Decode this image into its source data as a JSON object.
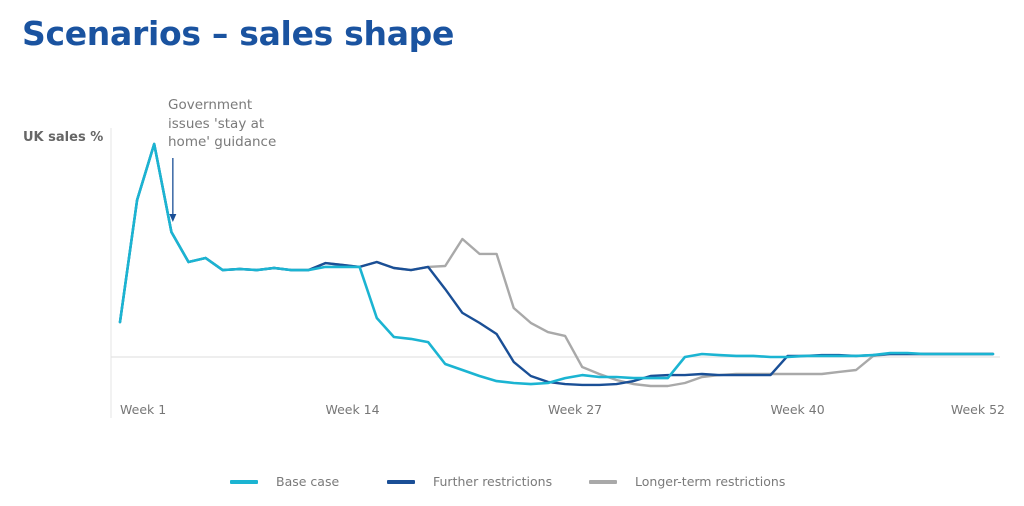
{
  "title": "Scenarios – sales shape",
  "chart_data": {
    "type": "line",
    "title": "Scenarios – sales shape",
    "ylabel": "UK sales %",
    "xlabel": "",
    "x": [
      1,
      2,
      3,
      4,
      5,
      6,
      7,
      8,
      9,
      10,
      11,
      12,
      13,
      14,
      15,
      16,
      17,
      18,
      19,
      20,
      21,
      22,
      23,
      24,
      25,
      26,
      27,
      28,
      29,
      30,
      31,
      32,
      33,
      34,
      35,
      36,
      37,
      38,
      39,
      40,
      41,
      42,
      43,
      44,
      45,
      46,
      47,
      48,
      49,
      50,
      51,
      52
    ],
    "x_ticks": [
      {
        "week": 1,
        "label": "Week 1"
      },
      {
        "week": 14,
        "label": "Week 14"
      },
      {
        "week": 27,
        "label": "Week 27"
      },
      {
        "week": 40,
        "label": "Week 40"
      },
      {
        "week": 52,
        "label": "Week 52"
      }
    ],
    "xlim": [
      1,
      52
    ],
    "ylim": [
      -25,
      100
    ],
    "y_units": "index (peak = 100, baseline = 0; axis unlabeled)",
    "zero_line": true,
    "grid": false,
    "legend_position": "bottom",
    "annotations": [
      {
        "text_lines": [
          "Government",
          "issues 'stay at",
          "home' guidance"
        ],
        "arrow_to_week": 4
      }
    ],
    "series": [
      {
        "name": "Base case",
        "color": "#1bb4d2",
        "values": [
          16.4,
          73.7,
          100,
          58.7,
          44.6,
          46.5,
          40.8,
          41.3,
          40.8,
          41.8,
          40.8,
          40.8,
          42.3,
          42.3,
          42.3,
          18.3,
          9.4,
          8.5,
          7.0,
          -3.3,
          -6.1,
          -8.9,
          -11.3,
          -12.2,
          -12.7,
          -12.2,
          -9.9,
          -8.5,
          -9.4,
          -9.4,
          -9.9,
          -9.9,
          -9.9,
          0,
          1.4,
          0.9,
          0.5,
          0.5,
          0,
          0,
          0.5,
          0.5,
          0.5,
          0.5,
          0.9,
          1.9,
          1.9,
          1.4,
          1.4,
          1.4,
          1.4,
          1.4
        ]
      },
      {
        "name": "Further restrictions",
        "color": "#1a4f96",
        "values": [
          16.4,
          73.7,
          100,
          58.7,
          44.6,
          46.5,
          40.8,
          41.3,
          40.8,
          41.8,
          40.8,
          40.8,
          44.1,
          43.2,
          42.3,
          44.6,
          41.8,
          40.8,
          42.3,
          31.9,
          20.7,
          16.0,
          10.8,
          -2.3,
          -8.9,
          -11.7,
          -12.7,
          -13.1,
          -13.1,
          -12.7,
          -11.3,
          -8.9,
          -8.5,
          -8.5,
          -8.0,
          -8.5,
          -8.5,
          -8.5,
          -8.5,
          0.5,
          0.5,
          0.9,
          0.9,
          0.5,
          0.9,
          1.4,
          1.4,
          1.4,
          1.4,
          1.4,
          1.4,
          1.4
        ]
      },
      {
        "name": "Longer-term restrictions",
        "color": "#a9a9a9",
        "values": [
          16.4,
          73.7,
          100,
          58.7,
          44.6,
          46.5,
          40.8,
          41.3,
          40.8,
          41.8,
          40.8,
          40.8,
          44.1,
          43.2,
          42.3,
          44.6,
          41.8,
          40.8,
          42.3,
          42.7,
          55.4,
          48.4,
          48.4,
          23.0,
          16.0,
          11.7,
          9.9,
          -4.7,
          -8.0,
          -10.8,
          -12.7,
          -13.6,
          -13.6,
          -12.2,
          -9.4,
          -8.5,
          -8.0,
          -8.0,
          -8.0,
          -8.0,
          -8.0,
          -8.0,
          -7.0,
          -6.1,
          0.5,
          1.4,
          1.4,
          1.4,
          1.4,
          1.4,
          1.4,
          1.4
        ]
      }
    ]
  },
  "legend": [
    {
      "label": "Base case",
      "color": "#1bb4d2"
    },
    {
      "label": "Further restrictions",
      "color": "#1a4f96"
    },
    {
      "label": "Longer-term restrictions",
      "color": "#a9a9a9"
    }
  ]
}
